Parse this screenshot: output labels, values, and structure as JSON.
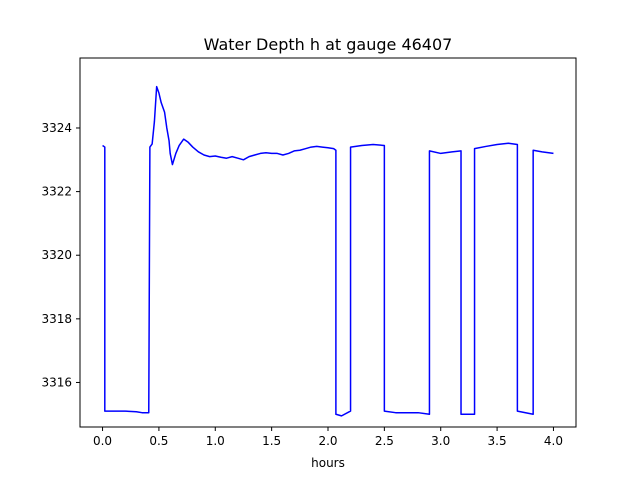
{
  "chart_data": {
    "type": "line",
    "title": "Water Depth h at gauge 46407",
    "xlabel": "hours",
    "ylabel": "",
    "xlim": [
      -0.2,
      4.2
    ],
    "ylim": [
      3314.6,
      3326.2
    ],
    "xticks": [
      0.0,
      0.5,
      1.0,
      1.5,
      2.0,
      2.5,
      3.0,
      3.5,
      4.0
    ],
    "xtick_labels": [
      "0.0",
      "0.5",
      "1.0",
      "1.5",
      "2.0",
      "2.5",
      "3.0",
      "3.5",
      "4.0"
    ],
    "yticks": [
      3316,
      3318,
      3320,
      3322,
      3324
    ],
    "ytick_labels": [
      "3316",
      "3318",
      "3320",
      "3322",
      "3324"
    ],
    "grid": false,
    "series": [
      {
        "name": "",
        "color": "#0000ff",
        "x": [
          0.0,
          0.02,
          0.02,
          0.1,
          0.2,
          0.3,
          0.35,
          0.41,
          0.42,
          0.44,
          0.46,
          0.48,
          0.5,
          0.52,
          0.55,
          0.57,
          0.59,
          0.6,
          0.62,
          0.65,
          0.68,
          0.72,
          0.76,
          0.8,
          0.85,
          0.9,
          0.95,
          1.0,
          1.05,
          1.1,
          1.15,
          1.2,
          1.25,
          1.3,
          1.35,
          1.4,
          1.45,
          1.5,
          1.55,
          1.6,
          1.65,
          1.7,
          1.75,
          1.8,
          1.85,
          1.9,
          1.95,
          2.0,
          2.05,
          2.07,
          2.07,
          2.12,
          2.2,
          2.2,
          2.3,
          2.4,
          2.5,
          2.5,
          2.6,
          2.7,
          2.8,
          2.9,
          2.9,
          3.0,
          3.1,
          3.18,
          3.18,
          3.3,
          3.3,
          3.4,
          3.5,
          3.6,
          3.68,
          3.68,
          3.82,
          3.82,
          3.9,
          4.0
        ],
        "y": [
          3323.45,
          3323.4,
          3315.1,
          3315.1,
          3315.1,
          3315.08,
          3315.05,
          3315.05,
          3323.4,
          3323.5,
          3324.2,
          3325.3,
          3325.1,
          3324.8,
          3324.5,
          3324.0,
          3323.6,
          3323.2,
          3322.85,
          3323.2,
          3323.45,
          3323.65,
          3323.55,
          3323.4,
          3323.25,
          3323.15,
          3323.1,
          3323.12,
          3323.08,
          3323.05,
          3323.1,
          3323.05,
          3323.0,
          3323.1,
          3323.15,
          3323.2,
          3323.22,
          3323.2,
          3323.2,
          3323.15,
          3323.2,
          3323.28,
          3323.3,
          3323.35,
          3323.4,
          3323.42,
          3323.4,
          3323.38,
          3323.35,
          3323.3,
          3315.0,
          3314.95,
          3315.1,
          3323.4,
          3323.45,
          3323.48,
          3323.45,
          3315.1,
          3315.05,
          3315.05,
          3315.05,
          3315.0,
          3323.28,
          3323.2,
          3323.25,
          3323.28,
          3315.0,
          3315.0,
          3323.35,
          3323.42,
          3323.48,
          3323.52,
          3323.48,
          3315.1,
          3315.0,
          3323.3,
          3323.25,
          3323.2
        ]
      }
    ]
  }
}
